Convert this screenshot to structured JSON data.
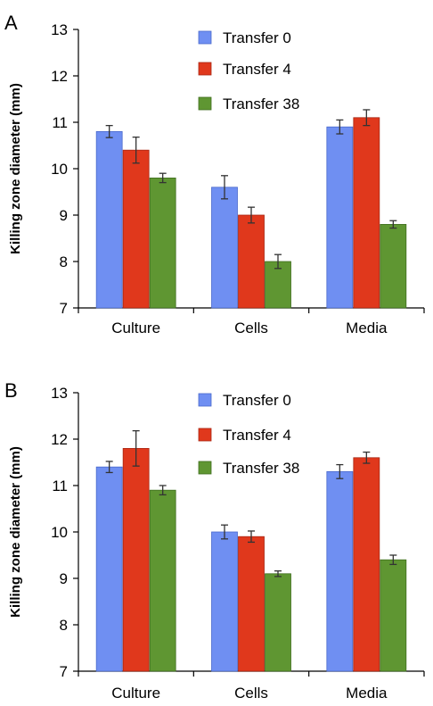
{
  "colors": {
    "series": [
      "#6f8ff2",
      "#e0381c",
      "#5f9632"
    ],
    "series_edge": [
      "#4a69cc",
      "#a82612",
      "#3f6d1f"
    ]
  },
  "chart_data": [
    {
      "type": "bar",
      "panel": "A",
      "title": "",
      "xlabel": "",
      "ylabel": "Killing zone diameter (mm)",
      "categories": [
        "Culture",
        "Cells",
        "Media"
      ],
      "ylim": [
        7,
        13
      ],
      "yticks": [
        7,
        8,
        9,
        10,
        11,
        12,
        13
      ],
      "grid": false,
      "legend_position": "top-center",
      "series": [
        {
          "name": "Transfer 0",
          "values": [
            10.8,
            9.6,
            10.9
          ],
          "errors": [
            0.13,
            0.25,
            0.15
          ]
        },
        {
          "name": "Transfer 4",
          "values": [
            10.4,
            9.0,
            11.1
          ],
          "errors": [
            0.28,
            0.17,
            0.17
          ]
        },
        {
          "name": "Transfer 38",
          "values": [
            9.8,
            8.0,
            8.8
          ],
          "errors": [
            0.1,
            0.15,
            0.08
          ]
        }
      ]
    },
    {
      "type": "bar",
      "panel": "B",
      "title": "",
      "xlabel": "",
      "ylabel": "Killing zone diameter (mm)",
      "categories": [
        "Culture",
        "Cells",
        "Media"
      ],
      "ylim": [
        7,
        13
      ],
      "yticks": [
        7,
        8,
        9,
        10,
        11,
        12,
        13
      ],
      "grid": false,
      "legend_position": "top-center",
      "series": [
        {
          "name": "Transfer 0",
          "values": [
            11.4,
            10.0,
            11.3
          ],
          "errors": [
            0.12,
            0.15,
            0.15
          ]
        },
        {
          "name": "Transfer 4",
          "values": [
            11.8,
            9.9,
            11.6
          ],
          "errors": [
            0.38,
            0.12,
            0.12
          ]
        },
        {
          "name": "Transfer 38",
          "values": [
            10.9,
            9.1,
            9.4
          ],
          "errors": [
            0.1,
            0.06,
            0.1
          ]
        }
      ]
    }
  ]
}
